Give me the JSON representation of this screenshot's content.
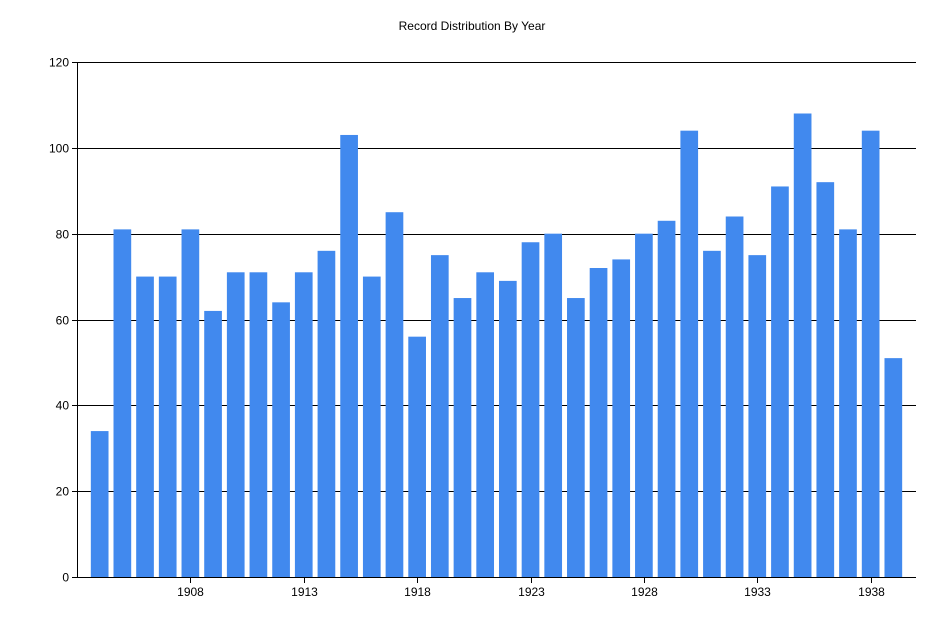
{
  "chart_data": {
    "type": "bar",
    "title": "Record Distribution By Year",
    "xlabel": "",
    "ylabel": "",
    "x": [
      1904,
      1905,
      1906,
      1907,
      1908,
      1909,
      1910,
      1911,
      1912,
      1913,
      1914,
      1915,
      1916,
      1917,
      1918,
      1919,
      1920,
      1921,
      1922,
      1923,
      1924,
      1925,
      1926,
      1927,
      1928,
      1929,
      1930,
      1931,
      1932,
      1933,
      1934,
      1935,
      1936,
      1937,
      1938,
      1939
    ],
    "values": [
      34,
      81,
      70,
      70,
      81,
      62,
      71,
      71,
      64,
      71,
      76,
      103,
      70,
      85,
      56,
      75,
      65,
      71,
      69,
      78,
      80,
      65,
      72,
      74,
      80,
      83,
      104,
      76,
      84,
      75,
      91,
      108,
      92,
      81,
      104,
      51
    ],
    "xticks": [
      "1908",
      "1913",
      "1918",
      "1923",
      "1928",
      "1933",
      "1938"
    ],
    "xtick_years": [
      1908,
      1913,
      1918,
      1923,
      1928,
      1933,
      1938
    ],
    "yticks": [
      "0",
      "20",
      "40",
      "60",
      "80",
      "100",
      "120"
    ],
    "ylim": [
      0,
      120
    ],
    "xlim": [
      1903,
      1940
    ],
    "grid": "horizontal",
    "legend": "none",
    "bar_color": "#4189EE",
    "grid_color": "#000000",
    "axis_color": "#000000"
  }
}
